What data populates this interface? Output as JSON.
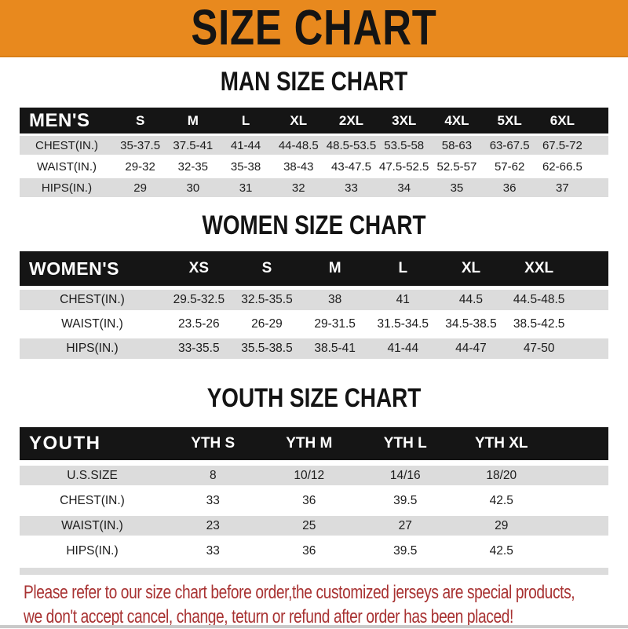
{
  "banner": {
    "title": "SIZE CHART",
    "bg_color": "#e8891e",
    "text_color": "#141414"
  },
  "colors": {
    "header_bar": "#151515",
    "row_stripe": "#dcdcdc",
    "footer_red": "#a83232"
  },
  "sections": [
    {
      "heading": "MAN SIZE CHART",
      "table": {
        "header_label": "MEN'S",
        "columns": [
          "S",
          "M",
          "L",
          "XL",
          "2XL",
          "3XL",
          "4XL",
          "5XL",
          "6XL"
        ],
        "rows": [
          {
            "label": "CHEST(IN.)",
            "values": [
              "35-37.5",
              "37.5-41",
              "41-44",
              "44-48.5",
              "48.5-53.5",
              "53.5-58",
              "58-63",
              "63-67.5",
              "67.5-72"
            ]
          },
          {
            "label": "WAIST(IN.)",
            "values": [
              "29-32",
              "32-35",
              "35-38",
              "38-43",
              "43-47.5",
              "47.5-52.5",
              "52.5-57",
              "57-62",
              "62-66.5"
            ]
          },
          {
            "label": "HIPS(IN.)",
            "values": [
              "29",
              "30",
              "31",
              "32",
              "33",
              "34",
              "35",
              "36",
              "37"
            ]
          }
        ]
      }
    },
    {
      "heading": "WOMEN SIZE CHART",
      "table": {
        "header_label": "WOMEN'S",
        "columns": [
          "XS",
          "S",
          "M",
          "L",
          "XL",
          "XXL"
        ],
        "rows": [
          {
            "label": "CHEST(IN.)",
            "values": [
              "29.5-32.5",
              "32.5-35.5",
              "38",
              "41",
              "44.5",
              "44.5-48.5"
            ]
          },
          {
            "label": "WAIST(IN.)",
            "values": [
              "23.5-26",
              "26-29",
              "29-31.5",
              "31.5-34.5",
              "34.5-38.5",
              "38.5-42.5"
            ]
          },
          {
            "label": "HIPS(IN.)",
            "values": [
              "33-35.5",
              "35.5-38.5",
              "38.5-41",
              "41-44",
              "44-47",
              "47-50"
            ]
          }
        ]
      }
    },
    {
      "heading": "YOUTH SIZE CHART",
      "table": {
        "header_label": "YOUTH",
        "columns": [
          "YTH S",
          "YTH M",
          "YTH L",
          "YTH XL"
        ],
        "rows": [
          {
            "label": "U.S.SIZE",
            "values": [
              "8",
              "10/12",
              "14/16",
              "18/20"
            ]
          },
          {
            "label": "CHEST(IN.)",
            "values": [
              "33",
              "36",
              "39.5",
              "42.5"
            ]
          },
          {
            "label": "WAIST(IN.)",
            "values": [
              "23",
              "25",
              "27",
              "29"
            ]
          },
          {
            "label": "HIPS(IN.)",
            "values": [
              "33",
              "36",
              "39.5",
              "42.5"
            ]
          }
        ]
      }
    }
  ],
  "footer": {
    "line1": "Please refer to our size chart before order,the customized jerseys are special products,",
    "line2": "we don't accept cancel, change, teturn or refund after order has been placed!"
  }
}
